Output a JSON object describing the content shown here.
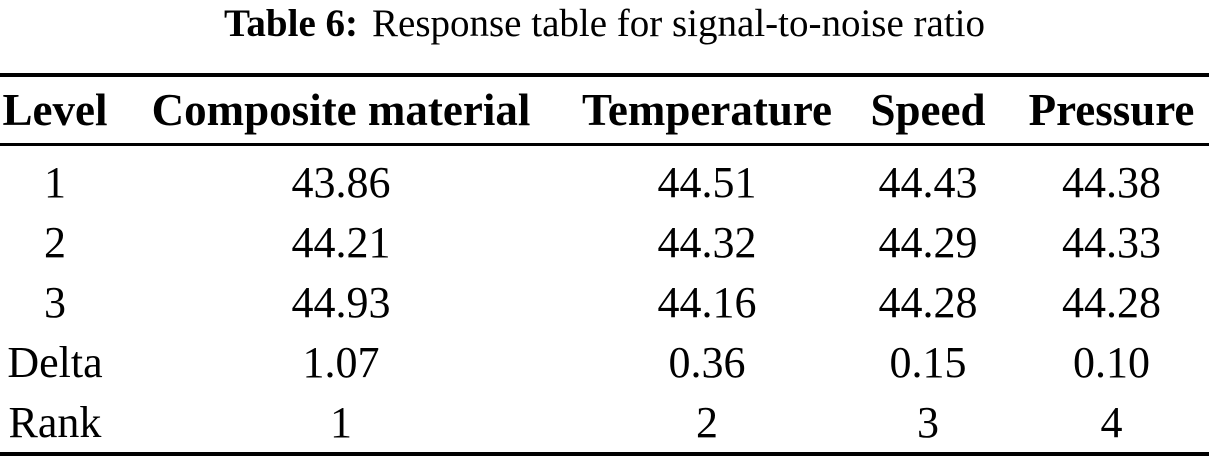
{
  "caption": {
    "label": "Table 6:",
    "text": "Response table for signal-to-noise ratio"
  },
  "table": {
    "columns": [
      "Level",
      "Composite material",
      "Temperature",
      "Speed",
      "Pressure"
    ],
    "rows": [
      [
        "1",
        "43.86",
        "44.51",
        "44.43",
        "44.38"
      ],
      [
        "2",
        "44.21",
        "44.32",
        "44.29",
        "44.33"
      ],
      [
        "3",
        "44.93",
        "44.16",
        "44.28",
        "44.28"
      ],
      [
        "Delta",
        "1.07",
        "0.36",
        "0.15",
        "0.10"
      ],
      [
        "Rank",
        "1",
        "2",
        "3",
        "4"
      ]
    ]
  },
  "colors": {
    "text": "#000000",
    "background": "#ffffff",
    "rule": "#000000"
  }
}
